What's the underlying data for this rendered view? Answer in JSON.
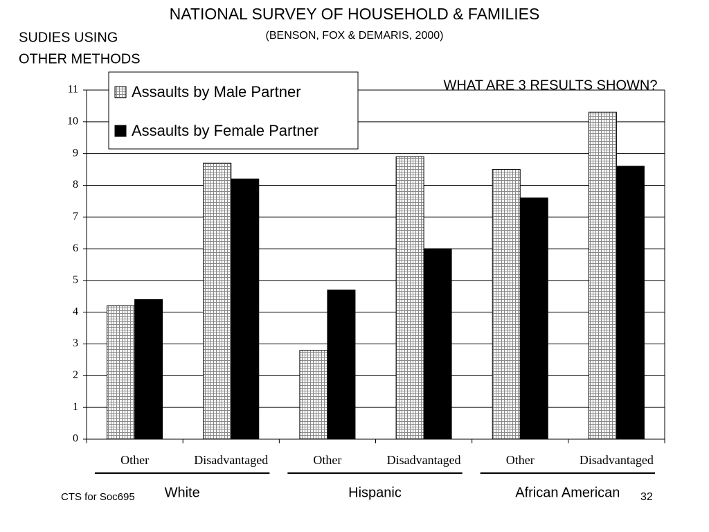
{
  "chart_data": {
    "type": "bar",
    "title": "NATIONAL SURVEY OF HOUSEHOLD & FAMILIES",
    "subtitle": "(BENSON, FOX & DEMARIS, 2000)",
    "categories": [
      "Other",
      "Disadvantaged",
      "Other",
      "Disadvantaged",
      "Other",
      "Disadvantaged"
    ],
    "groups": [
      "White",
      "Hispanic",
      "African American"
    ],
    "series": [
      {
        "name": "Assaults by Male Partner",
        "color": "#ffffff",
        "pattern": "grid",
        "values": [
          4.2,
          8.7,
          2.8,
          8.9,
          8.5,
          10.3
        ]
      },
      {
        "name": "Assaults by Female Partner",
        "color": "#000000",
        "values": [
          4.4,
          8.2,
          4.7,
          6.0,
          7.6,
          8.6
        ]
      }
    ],
    "ylim": [
      0,
      11
    ],
    "yticks": [
      0,
      1,
      2,
      3,
      4,
      5,
      6,
      7,
      8,
      9,
      10,
      11
    ],
    "grid": true,
    "legend": "top-left"
  },
  "slide": {
    "heading": [
      "SUDIES USING",
      "OTHER METHODS"
    ],
    "question": "WHAT ARE 3  RESULTS SHOWN?",
    "footer": "CTS for Soc695",
    "page_number": 32
  }
}
